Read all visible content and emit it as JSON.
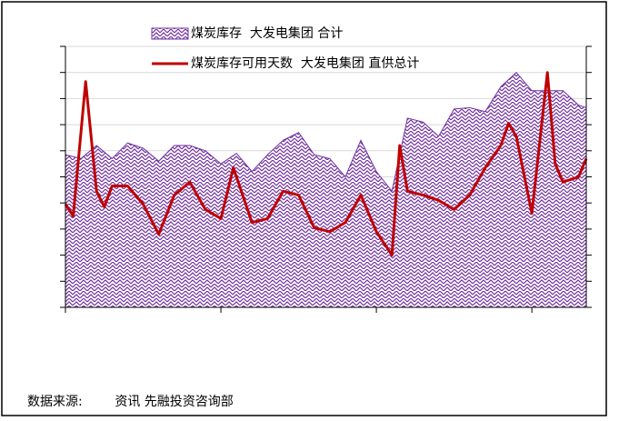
{
  "chart_data": {
    "type": "area-line",
    "series": [
      {
        "name": "煤炭库存  大发电集团 合计",
        "type": "area",
        "color": "#7030a0",
        "x": [
          0,
          0.1,
          0.2,
          0.3,
          0.4,
          0.5,
          0.6,
          0.7,
          0.8,
          0.9,
          1.0,
          1.1,
          1.2,
          1.3,
          1.4,
          1.5,
          1.6,
          1.7,
          1.8,
          1.9,
          2.0,
          2.1,
          2.2,
          2.3,
          2.4,
          2.5,
          2.6,
          2.7,
          2.8,
          2.9,
          3.0,
          3.1,
          3.2,
          3.3,
          3.35
        ],
        "values": [
          5.85,
          5.7,
          6.2,
          5.7,
          6.3,
          6.1,
          5.6,
          6.2,
          6.2,
          6.0,
          5.5,
          5.9,
          5.2,
          5.85,
          6.4,
          6.7,
          5.85,
          5.7,
          5.0,
          6.4,
          5.2,
          4.45,
          7.25,
          7.1,
          6.55,
          7.6,
          7.65,
          7.5,
          8.45,
          9.0,
          8.3,
          8.3,
          8.3,
          7.75,
          7.65
        ]
      },
      {
        "name": "煤炭库存可用天数  大发电集团 直供总计",
        "type": "line",
        "color": "#c00000",
        "axis": "y2",
        "x": [
          0,
          0.05,
          0.13,
          0.2,
          0.25,
          0.3,
          0.4,
          0.5,
          0.6,
          0.7,
          0.8,
          0.9,
          1.0,
          1.08,
          1.2,
          1.3,
          1.4,
          1.5,
          1.6,
          1.7,
          1.8,
          1.9,
          2.0,
          2.1,
          2.15,
          2.2,
          2.3,
          2.4,
          2.5,
          2.6,
          2.7,
          2.8,
          2.85,
          2.9,
          3.0,
          3.1,
          3.15,
          3.2,
          3.3,
          3.35
        ],
        "values": [
          3.95,
          3.5,
          8.65,
          4.45,
          3.85,
          4.65,
          4.65,
          3.95,
          2.8,
          4.3,
          4.8,
          3.75,
          3.4,
          5.35,
          3.25,
          3.4,
          4.45,
          4.3,
          3.05,
          2.9,
          3.25,
          4.3,
          2.9,
          2.0,
          6.2,
          4.45,
          4.3,
          4.1,
          3.75,
          4.3,
          5.35,
          6.2,
          7.05,
          6.55,
          3.6,
          9.0,
          5.5,
          4.8,
          5.0,
          5.7
        ]
      }
    ],
    "xlim": [
      0,
      3.35
    ],
    "xticks": [
      0,
      1,
      2,
      3
    ],
    "ylim": [
      0,
      10
    ],
    "yticks": [
      0,
      1,
      2,
      3,
      4,
      5,
      6,
      7,
      8,
      9,
      10
    ],
    "y2lim": [
      0,
      10
    ],
    "y2ticks": [
      0,
      1,
      2,
      3,
      4,
      5,
      6,
      7,
      8,
      9,
      10
    ],
    "grid": true,
    "legend": "top",
    "source": "数据来源:        资讯 先融投资咨询部"
  }
}
